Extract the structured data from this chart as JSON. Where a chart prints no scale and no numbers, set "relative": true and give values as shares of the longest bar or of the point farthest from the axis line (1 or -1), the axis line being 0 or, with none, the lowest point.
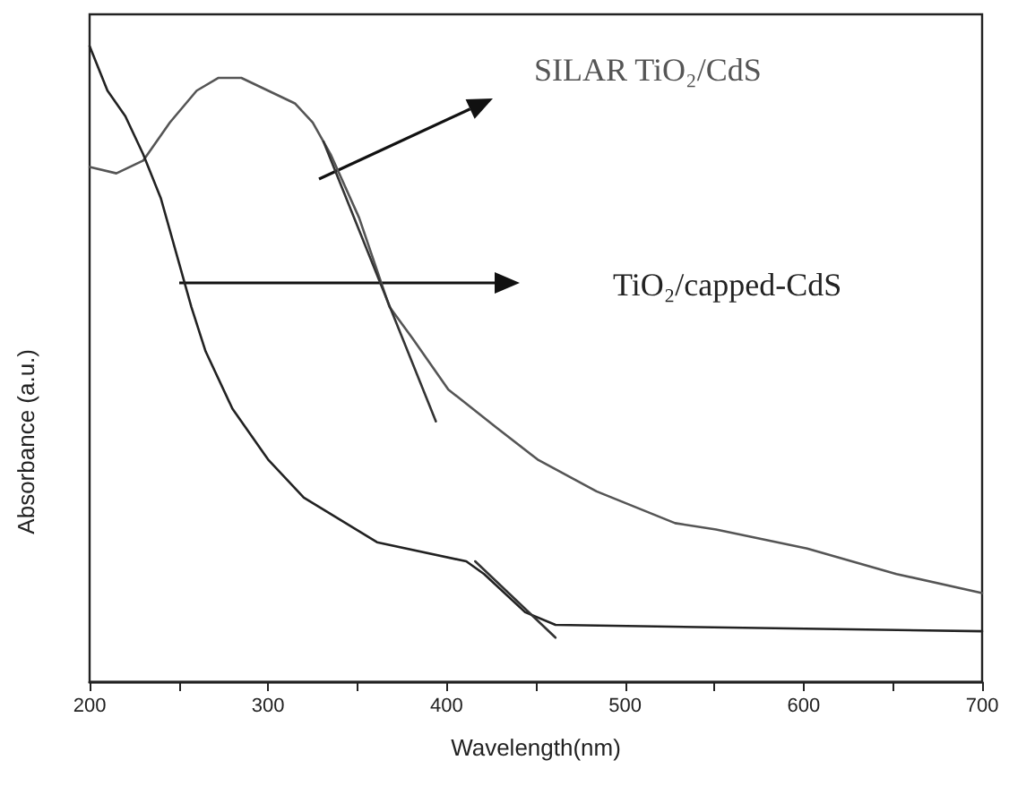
{
  "chart_data": {
    "type": "line",
    "xlabel": "Wavelength(nm)",
    "ylabel": "Absorbance (a.u.)",
    "relative": true,
    "marker": "none",
    "line_style": "solid",
    "grid": false,
    "legend": false,
    "xlim": [
      200,
      700
    ],
    "xticks": [
      200,
      {
        "value": 250,
        "label": null
      },
      300,
      {
        "value": 350,
        "label": null
      },
      400,
      {
        "value": 450,
        "label": null
      },
      500,
      {
        "value": 550,
        "label": null
      },
      600,
      {
        "value": 650,
        "label": null
      },
      700
    ],
    "series": [
      {
        "name": "SILAR TiO₂/CdS",
        "color": "#555555",
        "x": [
          200,
          215,
          230,
          245,
          260,
          272,
          285,
          300,
          315,
          325,
          335,
          351,
          368,
          381,
          401,
          428,
          451,
          484,
          528,
          551,
          602,
          652,
          700
        ],
        "values": [
          0.81,
          0.8,
          0.82,
          0.88,
          0.93,
          0.95,
          0.95,
          0.93,
          0.91,
          0.88,
          0.83,
          0.73,
          0.59,
          0.54,
          0.46,
          0.4,
          0.35,
          0.3,
          0.25,
          0.24,
          0.21,
          0.17,
          0.14
        ]
      },
      {
        "name": "TiO₂/capped-CdS",
        "color": "#222222",
        "x": [
          200,
          210,
          220,
          230,
          240,
          250,
          257,
          265,
          280,
          300,
          320,
          361,
          411,
          421,
          444,
          461,
          700
        ],
        "values": [
          1.0,
          0.93,
          0.89,
          0.83,
          0.76,
          0.66,
          0.59,
          0.52,
          0.43,
          0.35,
          0.29,
          0.22,
          0.19,
          0.17,
          0.11,
          0.09,
          0.08
        ]
      },
      {
        "color": "#333333",
        "x": [
          331,
          394
        ],
        "values": [
          0.85,
          0.41
        ]
      },
      {
        "color": "#333333",
        "x": [
          416,
          461
        ],
        "values": [
          0.19,
          0.07
        ]
      }
    ]
  }
}
